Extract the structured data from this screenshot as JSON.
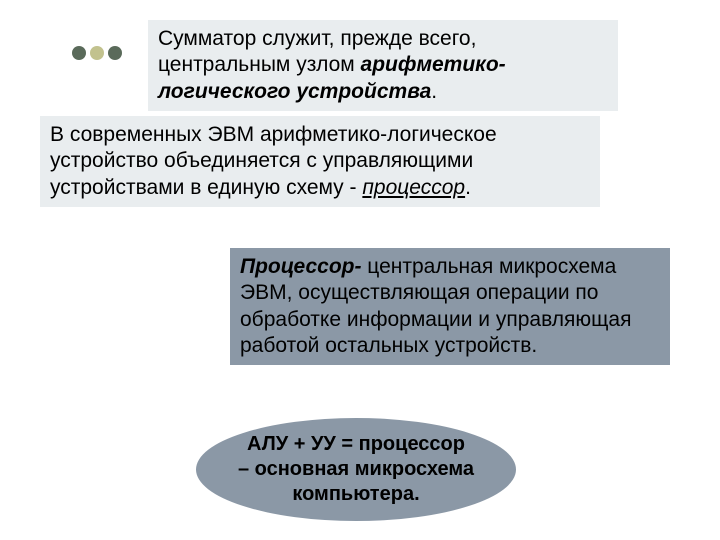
{
  "bullets": {
    "colors": [
      "#5a6a5a",
      "#c2c28e",
      "#5a6a5a"
    ]
  },
  "block1": {
    "background": "#e9edef",
    "text_plain": "Сумматор служит, прежде всего, центральным узлом ",
    "text_italic": "арифметико-логического устройства",
    "text_end": "."
  },
  "block2": {
    "background": "#e9edef",
    "text_plain": "В современных ЭВМ арифметико-логическое устройство объединяется с управляющими устройствами в единую схему - ",
    "text_underline": "процессор",
    "text_end": "."
  },
  "block3": {
    "background": "#8b98a6",
    "text_bold": "Процессор-",
    "text_plain": " центральная микросхема ЭВМ, осуществляющая операции по обработке информации и управляющая работой остальных устройств."
  },
  "block4": {
    "background": "#8b98a6",
    "line1": "АЛУ + УУ = процессор",
    "line2": "– основная микросхема",
    "line3": "компьютера."
  }
}
